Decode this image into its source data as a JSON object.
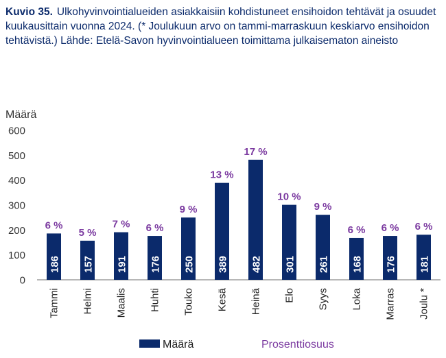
{
  "caption": {
    "label": "Kuvio 35.",
    "text": "Ulkohyvinvointialueiden asiakkaisiin kohdistuneet ensihoidon tehtävät ja osuudet kuukausittain vuonna 2024. (* Joulukuun arvo on tammi-marraskuun keskiarvo ensihoidon tehtävistä.) Lähde: Etelä-Savon hyvinvointialueen toimittama julkaisematon aineisto"
  },
  "chart_data": {
    "type": "bar",
    "ylabel": "Määrä",
    "ylim": [
      0,
      600
    ],
    "yticks": [
      0,
      100,
      200,
      300,
      400,
      500,
      600
    ],
    "categories": [
      "Tammi",
      "Helmi",
      "Maalis",
      "Huhti",
      "Touko",
      "Kesä",
      "Heinä",
      "Elo",
      "Syys",
      "Loka",
      "Marras",
      "Joulu *"
    ],
    "series": [
      {
        "name": "Määrä",
        "color": "#0b2a6b",
        "values": [
          186,
          157,
          191,
          176,
          250,
          389,
          482,
          301,
          261,
          168,
          176,
          181
        ]
      },
      {
        "name": "Prosenttiosuus",
        "color": "#7b3aa0",
        "labels": [
          "6 %",
          "5 %",
          "7 %",
          "6 %",
          "9 %",
          "13 %",
          "17 %",
          "10 %",
          "9 %",
          "6 %",
          "6 %",
          "6 %"
        ]
      }
    ],
    "grid": false,
    "legend_position": "bottom"
  }
}
